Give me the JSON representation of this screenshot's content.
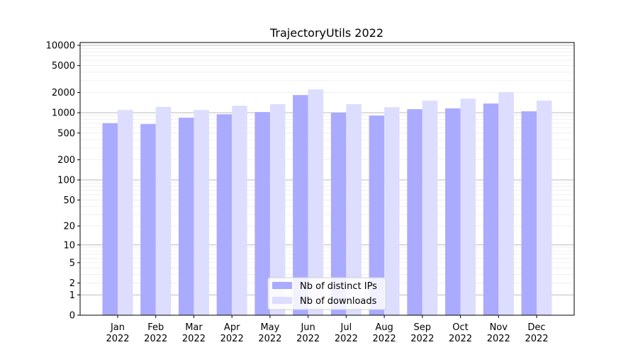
{
  "chart_data": {
    "type": "bar",
    "title": "TrajectoryUtils 2022",
    "xlabel": "",
    "ylabel": "",
    "yscale": "log10(1+y)",
    "ylim": [
      0,
      11000
    ],
    "yticks": [
      0,
      1,
      2,
      5,
      10,
      20,
      50,
      100,
      200,
      500,
      1000,
      2000,
      5000,
      10000
    ],
    "grid": true,
    "legend_position": "bottom-center",
    "categories": [
      "Jan\n2022",
      "Feb\n2022",
      "Mar\n2022",
      "Apr\n2022",
      "May\n2022",
      "Jun\n2022",
      "Jul\n2022",
      "Aug\n2022",
      "Sep\n2022",
      "Oct\n2022",
      "Nov\n2022",
      "Dec\n2022"
    ],
    "series": [
      {
        "name": "Nb of distinct IPs",
        "color": "#aaaaff",
        "values": [
          700,
          680,
          845,
          950,
          1025,
          1830,
          1000,
          910,
          1130,
          1160,
          1370,
          1050
        ]
      },
      {
        "name": "Nb of downloads",
        "color": "#ddddff",
        "values": [
          1100,
          1220,
          1100,
          1270,
          1340,
          2220,
          1340,
          1210,
          1510,
          1620,
          2020,
          1510
        ]
      }
    ]
  }
}
